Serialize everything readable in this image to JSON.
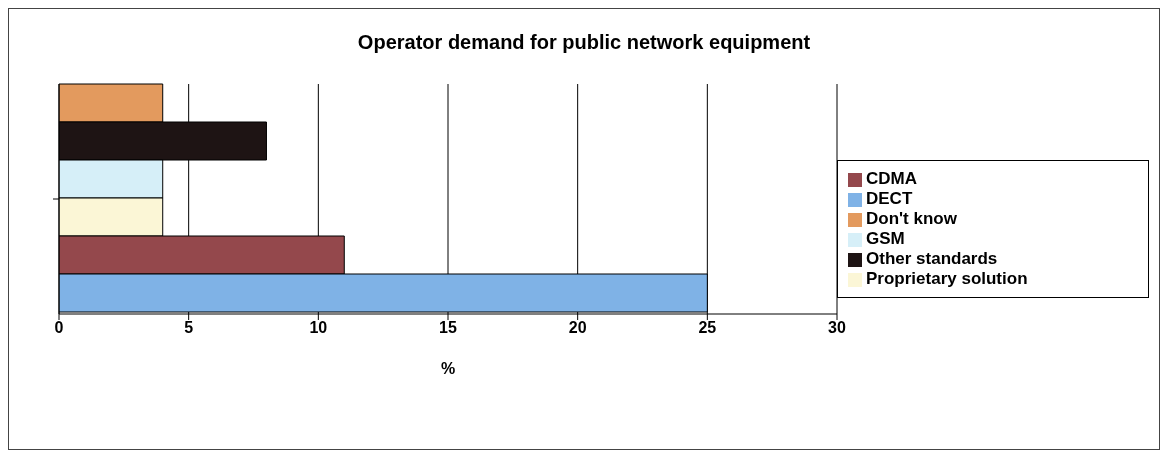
{
  "chart_data": {
    "type": "bar",
    "title": "Operator demand for public network equipment",
    "xlabel": "%",
    "orientation": "horizontal",
    "categories": [
      null
    ],
    "series": [
      {
        "name": "Don't know",
        "color": "#e39a5e",
        "values": [
          4
        ]
      },
      {
        "name": "Other standards",
        "color": "#1e1414",
        "values": [
          8
        ]
      },
      {
        "name": "GSM",
        "color": "#d6eff8",
        "values": [
          4
        ]
      },
      {
        "name": "Proprietary solution",
        "color": "#fbf6d6",
        "values": [
          4
        ]
      },
      {
        "name": "CDMA",
        "color": "#94484c",
        "values": [
          11
        ]
      },
      {
        "name": "DECT",
        "color": "#7fb2e6",
        "values": [
          25
        ]
      }
    ],
    "xlim": [
      0,
      30
    ],
    "xticks": [
      0,
      5,
      10,
      15,
      20,
      25,
      30
    ],
    "grid": "x",
    "legend": "right"
  }
}
